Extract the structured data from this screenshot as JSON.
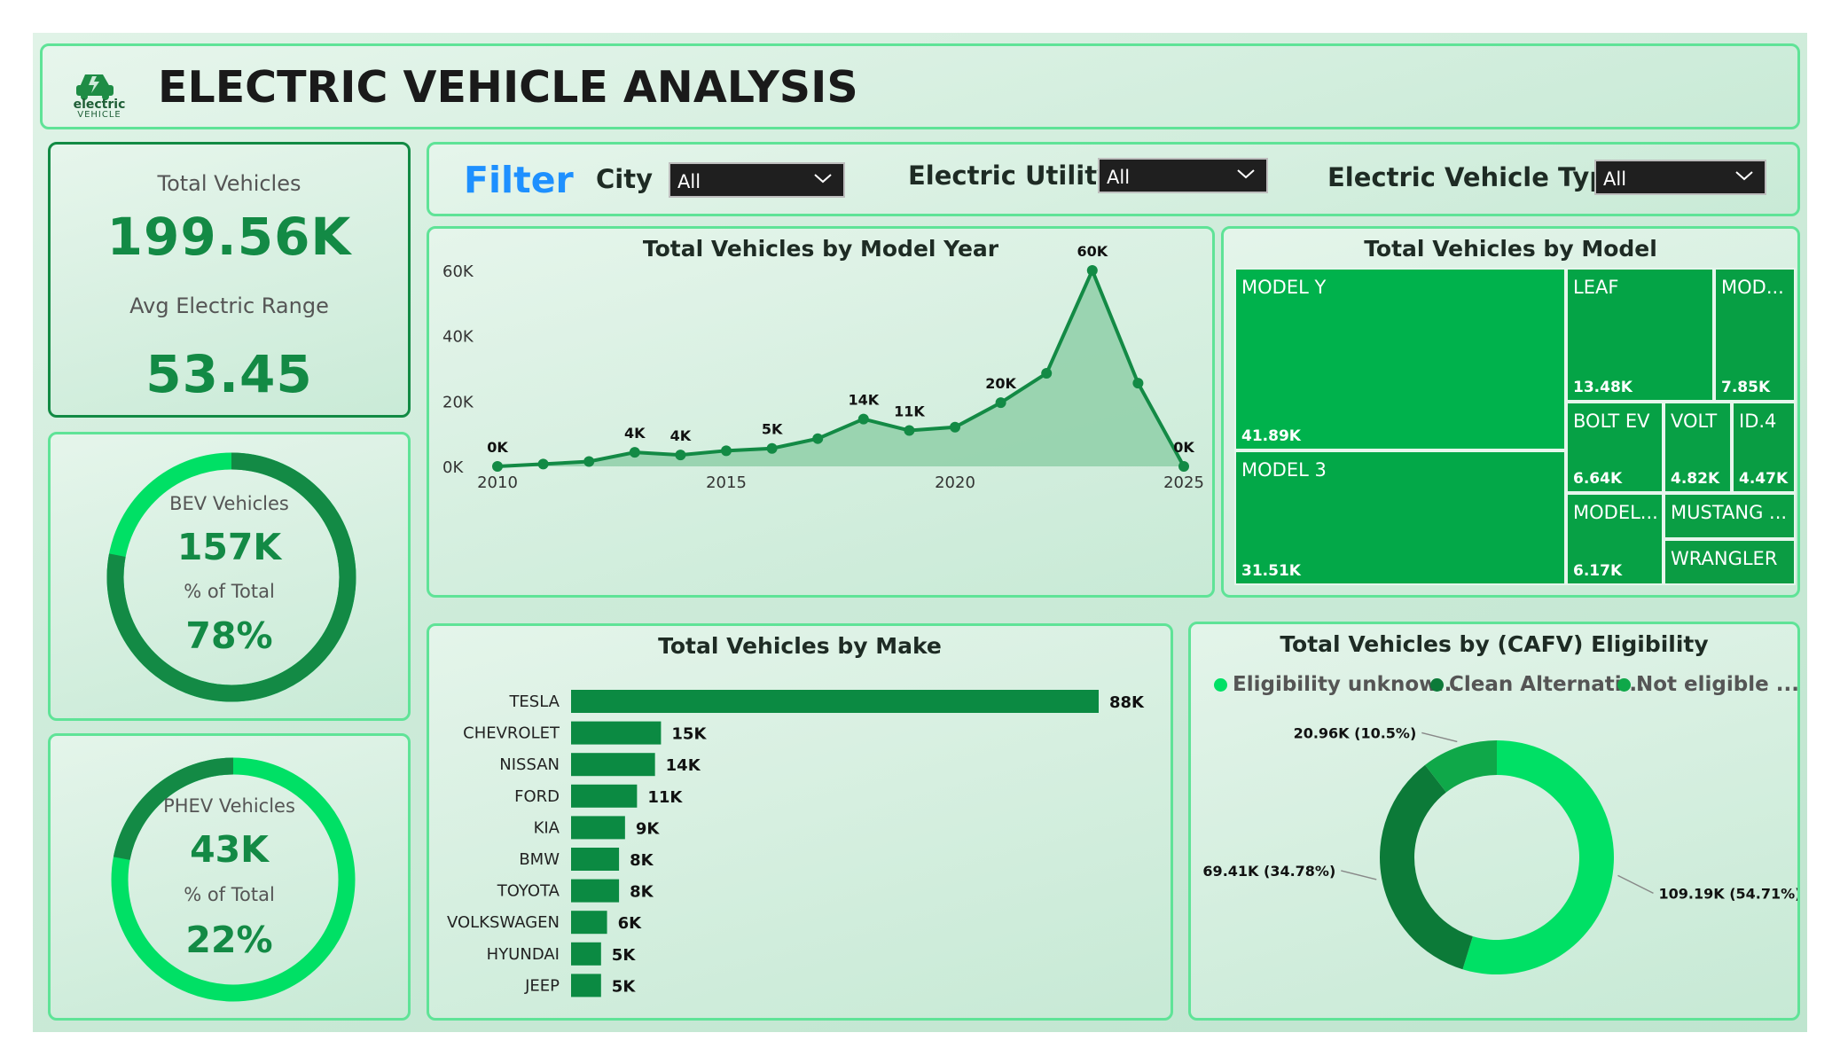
{
  "header": {
    "title": "ELECTRIC VEHICLE ANALYSIS",
    "logo_text_top": "electric",
    "logo_text_bottom": "VEHICLE"
  },
  "kpi": {
    "total_label": "Total Vehicles",
    "total_value": "199.56K",
    "range_label": "Avg Electric Range",
    "range_value": "53.45"
  },
  "bev": {
    "label": "BEV Vehicles",
    "value": "157K",
    "pct_label": "% of Total",
    "pct_value": "78%",
    "fraction": 0.78
  },
  "phev": {
    "label": "PHEV Vehicles",
    "value": "43K",
    "pct_label": "% of Total",
    "pct_value": "22%",
    "fraction": 0.22
  },
  "filter": {
    "title": "Filter",
    "city_label": "City",
    "city_value": "All",
    "utility_label": "Electric Utility",
    "utility_value": "All",
    "type_label": "Electric Vehicle Type",
    "type_value": "All"
  },
  "colors": {
    "accent_dark": "#138a45",
    "accent_light": "#00e065",
    "treemap": "#00b24c",
    "filter_blue": "#1e90ff"
  },
  "charts": {
    "model_year_title": "Total Vehicles by Model Year",
    "model_title": "Total Vehicles by Model",
    "make_title": "Total Vehicles by Make",
    "cafv_title": "Total Vehicles by (CAFV) Eligibility"
  },
  "chart_data": [
    {
      "type": "area",
      "title": "Total Vehicles by Model Year",
      "x": [
        2010,
        2011,
        2012,
        2013,
        2014,
        2015,
        2016,
        2017,
        2018,
        2019,
        2020,
        2021,
        2022,
        2023,
        2024,
        2025
      ],
      "y": [
        0,
        700,
        1500,
        4300,
        3500,
        4800,
        5500,
        8500,
        14500,
        11000,
        12000,
        19500,
        28500,
        60000,
        25500,
        0
      ],
      "data_labels": [
        "0K",
        "",
        "",
        "4K",
        "4K",
        "",
        "5K",
        "",
        "14K",
        "11K",
        "",
        "20K",
        "",
        "60K",
        "",
        "0K"
      ],
      "x_ticks": [
        "2010",
        "2015",
        "2020",
        "2025"
      ],
      "y_ticks": [
        "0K",
        "20K",
        "40K",
        "60K"
      ],
      "ylim": [
        0,
        60000
      ]
    },
    {
      "type": "treemap",
      "title": "Total Vehicles by Model",
      "items": [
        {
          "name": "MODEL Y",
          "value": "41.89K"
        },
        {
          "name": "MODEL 3",
          "value": "31.51K"
        },
        {
          "name": "LEAF",
          "value": "13.48K"
        },
        {
          "name": "MOD...",
          "value": "7.85K"
        },
        {
          "name": "BOLT EV",
          "value": "6.64K"
        },
        {
          "name": "VOLT",
          "value": "4.82K"
        },
        {
          "name": "ID.4",
          "value": "4.47K"
        },
        {
          "name": "MODEL...",
          "value": "6.17K"
        },
        {
          "name": "MUSTANG ...",
          "value": ""
        },
        {
          "name": "WRANGLER",
          "value": ""
        }
      ]
    },
    {
      "type": "bar",
      "title": "Total Vehicles by Make",
      "categories": [
        "TESLA",
        "CHEVROLET",
        "NISSAN",
        "FORD",
        "KIA",
        "BMW",
        "TOYOTA",
        "VOLKSWAGEN",
        "HYUNDAI",
        "JEEP"
      ],
      "values": [
        88,
        15,
        14,
        11,
        9,
        8,
        8,
        6,
        5,
        5
      ],
      "labels": [
        "88K",
        "15K",
        "14K",
        "11K",
        "9K",
        "8K",
        "8K",
        "6K",
        "5K",
        "5K"
      ]
    },
    {
      "type": "pie",
      "title": "Total Vehicles by (CAFV) Eligibility",
      "legend": [
        "Eligibility unknow...",
        "Clean Alternati...",
        "Not eligible ..."
      ],
      "values": [
        109.19,
        69.41,
        20.96
      ],
      "labels": [
        "109.19K (54.71%)",
        "69.41K (34.78%)",
        "20.96K (10.5%)"
      ],
      "colors": [
        "#00e065",
        "#0c7a38",
        "#0fa849"
      ]
    }
  ]
}
